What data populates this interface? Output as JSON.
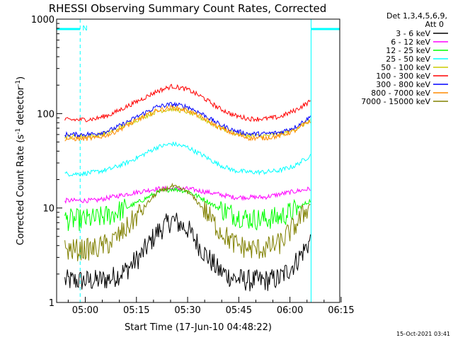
{
  "chart_data": {
    "type": "line",
    "title": "RHESSI Observing Summary Count Rates, Corrected",
    "xlabel": "Start Time (17-Jun-10 04:48:22)",
    "ylabel_main": "Corrected Count Rate (s",
    "ylabel_sup1": "-1",
    "ylabel_mid": " detector",
    "ylabel_sup2": "-1",
    "ylabel_end": ")",
    "yscale": "log",
    "ylim": [
      1,
      1000
    ],
    "xlim_minutes": [
      -8.4,
      74.6
    ],
    "x_ticks": [
      {
        "m": 0,
        "label": "05:00"
      },
      {
        "m": 15,
        "label": "05:15"
      },
      {
        "m": 30,
        "label": "05:30"
      },
      {
        "m": 45,
        "label": "05:45"
      },
      {
        "m": 60,
        "label": "06:00"
      },
      {
        "m": 75,
        "label": "06:15"
      }
    ],
    "y_ticks": [
      {
        "v": 1,
        "label": "1"
      },
      {
        "v": 10,
        "label": "10"
      },
      {
        "v": 100,
        "label": "100"
      },
      {
        "v": 1000,
        "label": "1000"
      }
    ],
    "legend_header": [
      "Det 1,3,4,5,6,9,",
      "Att 0"
    ],
    "legend_position": "right",
    "date_stamp": "15-Oct-2021 03:41",
    "night_label": "N",
    "marker_color": "#00ffff",
    "night_intervals_minutes": [
      [
        -8.4,
        -1.5
      ],
      [
        66.2,
        74.6
      ]
    ],
    "series": [
      {
        "name": "3 - 6 keV",
        "color": "#000000",
        "values": [
          1.7,
          1.7,
          1.7,
          1.8,
          2.2,
          3.2,
          5.5,
          7.5,
          6.0,
          3.5,
          2.2,
          1.8,
          1.7,
          1.7,
          1.8,
          2.6,
          4.5
        ]
      },
      {
        "name": "6 - 12 keV",
        "color": "#ff00ff",
        "values": [
          12,
          12,
          12,
          13,
          14,
          15,
          16,
          16,
          16,
          15,
          14,
          13,
          13,
          13,
          14,
          15,
          16
        ]
      },
      {
        "name": "12 - 25 keV",
        "color": "#00ff00",
        "values": [
          7.5,
          7.5,
          7.7,
          8.5,
          10,
          12,
          14.5,
          16,
          15,
          12.5,
          10,
          8.5,
          7.7,
          7.6,
          8,
          9.5,
          12
        ]
      },
      {
        "name": "25 - 50 keV",
        "color": "#00ffff",
        "values": [
          23,
          23,
          24,
          26,
          30,
          36,
          44,
          48,
          44,
          36,
          29,
          25,
          24,
          24,
          25,
          28,
          36
        ]
      },
      {
        "name": "50 - 100 keV",
        "color": "#cccc00",
        "values": [
          57,
          57,
          58,
          64,
          76,
          90,
          106,
          112,
          104,
          88,
          72,
          62,
          58,
          58,
          60,
          68,
          85
        ]
      },
      {
        "name": "100 - 300 keV",
        "color": "#ff0000",
        "values": [
          86,
          86,
          88,
          98,
          118,
          142,
          172,
          195,
          180,
          148,
          115,
          96,
          88,
          88,
          92,
          108,
          135
        ]
      },
      {
        "name": "300 - 800 keV",
        "color": "#0000ff",
        "values": [
          60,
          60,
          61,
          67,
          80,
          98,
          118,
          126,
          118,
          98,
          78,
          66,
          61,
          61,
          63,
          72,
          92
        ]
      },
      {
        "name": "800 - 7000 keV",
        "color": "#ff8c00",
        "values": [
          54,
          54,
          55,
          61,
          74,
          90,
          108,
          116,
          108,
          90,
          72,
          61,
          55,
          55,
          58,
          66,
          84
        ]
      },
      {
        "name": "7000 - 15000 keV",
        "color": "#808000",
        "values": [
          3.6,
          3.6,
          3.7,
          4.3,
          6.0,
          9.5,
          14.5,
          17,
          15,
          10,
          6.0,
          4.2,
          3.7,
          3.7,
          4.2,
          6.5,
          11
        ]
      }
    ],
    "x_samples_minutes": [
      -6,
      -1.5,
      3,
      7.5,
      12,
      16.5,
      21,
      25.5,
      30,
      34.5,
      39,
      43.5,
      48,
      52.5,
      57,
      61.5,
      66
    ]
  }
}
